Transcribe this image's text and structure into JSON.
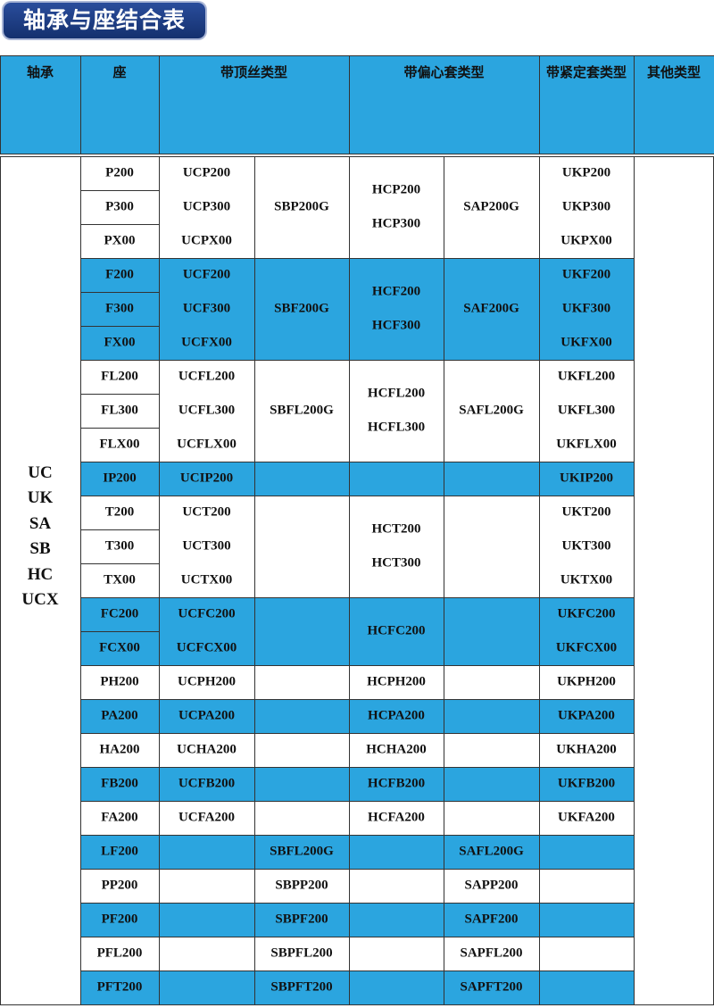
{
  "header": {
    "title": "轴承与座结合表"
  },
  "table": {
    "columns": [
      "轴承",
      "座",
      "带顶丝类型",
      "带偏心套类型",
      "带紧定套类型",
      "其他类型"
    ],
    "bearing": [
      "UC",
      "UK",
      "SA",
      "SB",
      "HC",
      "UCX"
    ],
    "groups": [
      {
        "seat": [
          "P200",
          "P300",
          "PX00"
        ],
        "uc": [
          "UCP200",
          "UCP300",
          "UCPX00"
        ],
        "sb": "SBP200G",
        "hc": [
          "HCP200",
          "HCP300"
        ],
        "sa": "SAP200G",
        "uk": [
          "UKP200",
          "UKP300",
          "UKPX00"
        ]
      },
      {
        "seat": [
          "F200",
          "F300",
          "FX00"
        ],
        "uc": [
          "UCF200",
          "UCF300",
          "UCFX00"
        ],
        "sb": "SBF200G",
        "hc": [
          "HCF200",
          "HCF300"
        ],
        "sa": "SAF200G",
        "uk": [
          "UKF200",
          "UKF300",
          "UKFX00"
        ]
      },
      {
        "seat": [
          "FL200",
          "FL300",
          "FLX00"
        ],
        "uc": [
          "UCFL200",
          "UCFL300",
          "UCFLX00"
        ],
        "sb": "SBFL200G",
        "hc": [
          "HCFL200",
          "HCFL300"
        ],
        "sa": "SAFL200G",
        "uk": [
          "UKFL200",
          "UKFL300",
          "UKFLX00"
        ]
      },
      {
        "seat": [
          "IP200"
        ],
        "uc": [
          "UCIP200"
        ],
        "uk": [
          "UKIP200"
        ]
      },
      {
        "seat": [
          "T200",
          "T300",
          "TX00"
        ],
        "uc": [
          "UCT200",
          "UCT300",
          "UCTX00"
        ],
        "hc": [
          "HCT200",
          "HCT300"
        ],
        "uk": [
          "UKT200",
          "UKT300",
          "UKTX00"
        ]
      },
      {
        "seat": [
          "FC200",
          "FCX00"
        ],
        "uc": [
          "UCFC200",
          "UCFCX00"
        ],
        "hc": [
          "HCFC200"
        ],
        "uk": [
          "UKFC200",
          "UKFCX00"
        ]
      },
      {
        "seat": [
          "PH200"
        ],
        "uc": [
          "UCPH200"
        ],
        "hc": [
          "HCPH200"
        ],
        "uk": [
          "UKPH200"
        ]
      },
      {
        "seat": [
          "PA200"
        ],
        "uc": [
          "UCPA200"
        ],
        "hc": [
          "HCPA200"
        ],
        "uk": [
          "UKPA200"
        ]
      },
      {
        "seat": [
          "HA200"
        ],
        "uc": [
          "UCHA200"
        ],
        "hc": [
          "HCHA200"
        ],
        "uk": [
          "UKHA200"
        ]
      },
      {
        "seat": [
          "FB200"
        ],
        "uc": [
          "UCFB200"
        ],
        "hc": [
          "HCFB200"
        ],
        "uk": [
          "UKFB200"
        ]
      },
      {
        "seat": [
          "FA200"
        ],
        "uc": [
          "UCFA200"
        ],
        "hc": [
          "HCFA200"
        ],
        "uk": [
          "UKFA200"
        ]
      },
      {
        "seat": [
          "LF200"
        ],
        "sb": "SBFL200G",
        "sa": "SAFL200G"
      },
      {
        "seat": [
          "PP200"
        ],
        "sb": "SBPP200",
        "sa": "SAPP200"
      },
      {
        "seat": [
          "PF200"
        ],
        "sb": "SBPF200",
        "sa": "SAPF200"
      },
      {
        "seat": [
          "PFL200"
        ],
        "sb": "SBPFL200",
        "sa": "SAPFL200"
      },
      {
        "seat": [
          "PFT200"
        ],
        "sb": "SBPFT200",
        "sa": "SAPFT200"
      }
    ]
  }
}
